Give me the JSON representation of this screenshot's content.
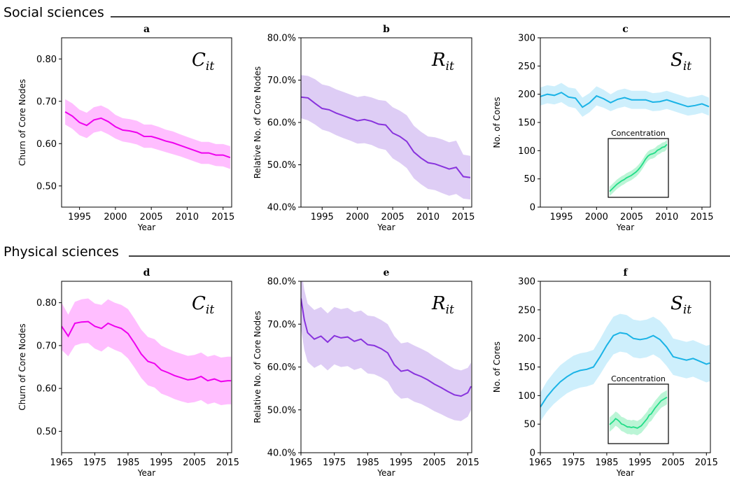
{
  "sections": [
    {
      "title": "Social sciences"
    },
    {
      "title": "Physical sciences"
    }
  ],
  "chart_data": [
    {
      "id": "a",
      "type": "line",
      "panel_label": "a",
      "annotation": {
        "main": "C",
        "sub": "it"
      },
      "xlabel": "Year",
      "ylabel": "Churn of Core Nodes",
      "xlim": [
        1992.5,
        2016.2
      ],
      "ylim": [
        0.45,
        0.85
      ],
      "xticks": [
        1995,
        2000,
        2005,
        2010,
        2015
      ],
      "yticks": [
        0.5,
        0.6,
        0.7,
        0.8
      ],
      "ytick_labels": [
        "0.50",
        "0.60",
        "0.70",
        "0.80"
      ],
      "series": [
        {
          "color": "#ee00ee",
          "band_color": "#ffb3ff",
          "x": [
            1993,
            1994,
            1995,
            1996,
            1997,
            1998,
            1999,
            2000,
            2001,
            2002,
            2003,
            2004,
            2005,
            2006,
            2007,
            2008,
            2009,
            2010,
            2011,
            2012,
            2013,
            2014,
            2015,
            2016
          ],
          "y": [
            0.675,
            0.665,
            0.65,
            0.643,
            0.656,
            0.66,
            0.652,
            0.64,
            0.632,
            0.63,
            0.626,
            0.617,
            0.617,
            0.612,
            0.606,
            0.602,
            0.596,
            0.59,
            0.584,
            0.578,
            0.578,
            0.573,
            0.573,
            0.567
          ],
          "lower": [
            0.645,
            0.635,
            0.62,
            0.613,
            0.626,
            0.63,
            0.622,
            0.612,
            0.605,
            0.602,
            0.598,
            0.59,
            0.59,
            0.585,
            0.58,
            0.575,
            0.57,
            0.564,
            0.558,
            0.552,
            0.552,
            0.547,
            0.546,
            0.54
          ],
          "upper": [
            0.705,
            0.695,
            0.68,
            0.673,
            0.686,
            0.69,
            0.682,
            0.668,
            0.66,
            0.658,
            0.654,
            0.645,
            0.645,
            0.64,
            0.633,
            0.629,
            0.622,
            0.616,
            0.61,
            0.604,
            0.604,
            0.599,
            0.599,
            0.594
          ]
        }
      ]
    },
    {
      "id": "b",
      "type": "line",
      "panel_label": "b",
      "annotation": {
        "main": "R",
        "sub": "it"
      },
      "xlabel": "Year",
      "ylabel": "Relative No. of Core Nodes",
      "xlim": [
        1992,
        2016.2
      ],
      "ylim": [
        0.4,
        0.8
      ],
      "xticks": [
        1995,
        2000,
        2005,
        2010,
        2015
      ],
      "yticks": [
        0.4,
        0.5,
        0.6,
        0.7,
        0.8
      ],
      "ytick_labels": [
        "40.0%",
        "50.0%",
        "60.0%",
        "70.0%",
        "80.0%"
      ],
      "series": [
        {
          "color": "#8833dd",
          "band_color": "#d8c4f3",
          "x": [
            1992,
            1993,
            1994,
            1995,
            1996,
            1997,
            1998,
            1999,
            2000,
            2001,
            2002,
            2003,
            2004,
            2005,
            2006,
            2007,
            2008,
            2009,
            2010,
            2011,
            2012,
            2013,
            2014,
            2015,
            2016
          ],
          "y": [
            0.66,
            0.658,
            0.645,
            0.633,
            0.63,
            0.622,
            0.616,
            0.61,
            0.604,
            0.607,
            0.603,
            0.596,
            0.594,
            0.575,
            0.567,
            0.555,
            0.53,
            0.516,
            0.505,
            0.502,
            0.496,
            0.49,
            0.494,
            0.472,
            0.47
          ],
          "lower": [
            0.61,
            0.605,
            0.595,
            0.583,
            0.578,
            0.57,
            0.563,
            0.557,
            0.55,
            0.551,
            0.547,
            0.539,
            0.535,
            0.515,
            0.505,
            0.492,
            0.468,
            0.454,
            0.443,
            0.44,
            0.433,
            0.427,
            0.431,
            0.42,
            0.418
          ],
          "upper": [
            0.712,
            0.71,
            0.702,
            0.69,
            0.686,
            0.678,
            0.672,
            0.666,
            0.66,
            0.663,
            0.659,
            0.653,
            0.651,
            0.636,
            0.628,
            0.617,
            0.592,
            0.578,
            0.567,
            0.565,
            0.56,
            0.553,
            0.557,
            0.524,
            0.521
          ]
        }
      ]
    },
    {
      "id": "c",
      "type": "line",
      "panel_label": "c",
      "annotation": {
        "main": "S",
        "sub": "it"
      },
      "xlabel": "Year",
      "ylabel": "No. of Cores",
      "xlim": [
        1992,
        2016.2
      ],
      "ylim": [
        0,
        300
      ],
      "xticks": [
        1995,
        2000,
        2005,
        2010,
        2015
      ],
      "yticks": [
        0,
        50,
        100,
        150,
        200,
        250,
        300
      ],
      "ytick_labels": [
        "0",
        "50",
        "100",
        "150",
        "200",
        "250",
        "300"
      ],
      "series": [
        {
          "color": "#1ab3e6",
          "band_color": "#c6ecfb",
          "x": [
            1992,
            1993,
            1994,
            1995,
            1996,
            1997,
            1998,
            1999,
            2000,
            2001,
            2002,
            2003,
            2004,
            2005,
            2006,
            2007,
            2008,
            2009,
            2010,
            2011,
            2012,
            2013,
            2014,
            2015,
            2016
          ],
          "y": [
            196,
            200,
            198,
            203,
            195,
            193,
            177,
            185,
            197,
            192,
            185,
            191,
            194,
            190,
            190,
            190,
            186,
            187,
            190,
            186,
            182,
            178,
            180,
            183,
            178
          ],
          "lower": [
            180,
            184,
            182,
            186,
            178,
            175,
            160,
            168,
            180,
            176,
            170,
            175,
            178,
            174,
            174,
            174,
            170,
            171,
            174,
            170,
            166,
            162,
            164,
            167,
            162
          ],
          "upper": [
            212,
            216,
            214,
            220,
            212,
            210,
            194,
            202,
            214,
            208,
            200,
            207,
            210,
            206,
            206,
            206,
            202,
            203,
            206,
            202,
            198,
            194,
            196,
            199,
            194
          ]
        }
      ],
      "inset": {
        "title": "Concentration",
        "color": "#22dd88",
        "band_color": "#aaf3cc",
        "y": [
          0.1,
          0.14,
          0.18,
          0.22,
          0.25,
          0.28,
          0.3,
          0.33,
          0.35,
          0.37,
          0.4,
          0.43,
          0.47,
          0.52,
          0.58,
          0.65,
          0.7,
          0.73,
          0.74,
          0.76,
          0.8,
          0.82,
          0.85,
          0.86,
          0.9
        ],
        "spread": 0.08
      }
    },
    {
      "id": "d",
      "type": "line",
      "panel_label": "d",
      "annotation": {
        "main": "C",
        "sub": "it"
      },
      "xlabel": "Year",
      "ylabel": "Churn of Core Nodes",
      "xlim": [
        1965,
        2016.2
      ],
      "ylim": [
        0.45,
        0.85
      ],
      "xticks": [
        1965,
        1975,
        1985,
        1995,
        2005,
        2015
      ],
      "yticks": [
        0.5,
        0.6,
        0.7,
        0.8
      ],
      "ytick_labels": [
        "0.50",
        "0.60",
        "0.70",
        "0.80"
      ],
      "series": [
        {
          "color": "#ee00ee",
          "band_color": "#ffb3ff",
          "x": [
            1965,
            1967,
            1969,
            1971,
            1973,
            1975,
            1977,
            1979,
            1981,
            1983,
            1985,
            1987,
            1989,
            1991,
            1993,
            1995,
            1997,
            1999,
            2001,
            2003,
            2005,
            2007,
            2009,
            2011,
            2013,
            2015,
            2016
          ],
          "y": [
            0.745,
            0.722,
            0.752,
            0.755,
            0.756,
            0.745,
            0.74,
            0.752,
            0.745,
            0.74,
            0.728,
            0.705,
            0.68,
            0.663,
            0.658,
            0.643,
            0.637,
            0.63,
            0.625,
            0.62,
            0.622,
            0.628,
            0.618,
            0.622,
            0.616,
            0.618,
            0.618
          ],
          "lower": [
            0.69,
            0.675,
            0.7,
            0.705,
            0.706,
            0.693,
            0.686,
            0.698,
            0.69,
            0.684,
            0.67,
            0.648,
            0.624,
            0.607,
            0.602,
            0.588,
            0.582,
            0.575,
            0.57,
            0.566,
            0.568,
            0.573,
            0.563,
            0.567,
            0.561,
            0.563,
            0.563
          ],
          "upper": [
            0.8,
            0.772,
            0.802,
            0.808,
            0.81,
            0.798,
            0.795,
            0.808,
            0.8,
            0.795,
            0.785,
            0.762,
            0.737,
            0.72,
            0.715,
            0.7,
            0.693,
            0.686,
            0.681,
            0.676,
            0.678,
            0.684,
            0.674,
            0.678,
            0.672,
            0.674,
            0.674
          ]
        }
      ]
    },
    {
      "id": "e",
      "type": "line",
      "panel_label": "e",
      "annotation": {
        "main": "R",
        "sub": "it"
      },
      "xlabel": "Year",
      "ylabel": "Relative No. of Core Nodes",
      "xlim": [
        1965,
        2016.2
      ],
      "ylim": [
        0.4,
        0.8
      ],
      "xticks": [
        1965,
        1975,
        1985,
        1995,
        2005,
        2015
      ],
      "yticks": [
        0.4,
        0.5,
        0.6,
        0.7,
        0.8
      ],
      "ytick_labels": [
        "40.0%",
        "50.0%",
        "60.0%",
        "70.0%",
        "80.0%"
      ],
      "series": [
        {
          "color": "#8833dd",
          "band_color": "#d8c4f3",
          "x": [
            1965,
            1966,
            1967,
            1969,
            1971,
            1973,
            1975,
            1977,
            1979,
            1981,
            1983,
            1985,
            1987,
            1989,
            1991,
            1993,
            1995,
            1997,
            1999,
            2001,
            2003,
            2005,
            2007,
            2009,
            2011,
            2013,
            2015,
            2016
          ],
          "y": [
            0.76,
            0.71,
            0.68,
            0.665,
            0.672,
            0.658,
            0.673,
            0.668,
            0.67,
            0.66,
            0.665,
            0.652,
            0.65,
            0.643,
            0.633,
            0.605,
            0.59,
            0.593,
            0.584,
            0.578,
            0.57,
            0.56,
            0.552,
            0.543,
            0.535,
            0.532,
            0.54,
            0.555
          ],
          "lower": [
            0.69,
            0.64,
            0.612,
            0.598,
            0.606,
            0.592,
            0.606,
            0.6,
            0.602,
            0.593,
            0.598,
            0.585,
            0.583,
            0.576,
            0.566,
            0.54,
            0.526,
            0.528,
            0.519,
            0.514,
            0.506,
            0.497,
            0.49,
            0.482,
            0.476,
            0.474,
            0.484,
            0.5
          ],
          "upper": [
            0.83,
            0.78,
            0.748,
            0.733,
            0.74,
            0.725,
            0.74,
            0.735,
            0.738,
            0.728,
            0.732,
            0.72,
            0.718,
            0.71,
            0.7,
            0.672,
            0.655,
            0.658,
            0.65,
            0.643,
            0.635,
            0.624,
            0.615,
            0.605,
            0.596,
            0.592,
            0.598,
            0.61
          ]
        }
      ]
    },
    {
      "id": "f",
      "type": "line",
      "panel_label": "f",
      "annotation": {
        "main": "S",
        "sub": "it"
      },
      "xlabel": "Year",
      "ylabel": "No. of Cores",
      "xlim": [
        1965,
        2016.2
      ],
      "ylim": [
        0,
        300
      ],
      "xticks": [
        1965,
        1975,
        1985,
        1995,
        2005,
        2015
      ],
      "yticks": [
        0,
        50,
        100,
        150,
        200,
        250,
        300
      ],
      "ytick_labels": [
        "0",
        "50",
        "100",
        "150",
        "200",
        "250",
        "300"
      ],
      "series": [
        {
          "color": "#1ab3e6",
          "band_color": "#c6ecfb",
          "x": [
            1965,
            1967,
            1969,
            1971,
            1973,
            1975,
            1977,
            1979,
            1981,
            1983,
            1985,
            1987,
            1989,
            1991,
            1993,
            1995,
            1997,
            1999,
            2001,
            2003,
            2005,
            2007,
            2009,
            2011,
            2013,
            2015,
            2016
          ],
          "y": [
            80,
            98,
            112,
            124,
            133,
            140,
            144,
            146,
            150,
            168,
            188,
            205,
            210,
            208,
            200,
            198,
            200,
            205,
            198,
            185,
            168,
            165,
            162,
            165,
            160,
            155,
            157
          ],
          "lower": [
            55,
            72,
            85,
            95,
            104,
            110,
            114,
            116,
            120,
            137,
            156,
            172,
            177,
            175,
            167,
            165,
            167,
            172,
            165,
            152,
            136,
            133,
            130,
            133,
            128,
            123,
            125
          ],
          "upper": [
            105,
            125,
            140,
            153,
            162,
            170,
            174,
            176,
            180,
            199,
            220,
            238,
            243,
            241,
            233,
            231,
            233,
            238,
            231,
            218,
            200,
            197,
            194,
            197,
            192,
            187,
            189
          ]
        }
      ],
      "inset": {
        "title": "Concentration",
        "color": "#22dd88",
        "band_color": "#aaf3cc",
        "y": [
          0.32,
          0.35,
          0.38,
          0.42,
          0.4,
          0.37,
          0.33,
          0.32,
          0.3,
          0.28,
          0.28,
          0.27,
          0.28,
          0.27,
          0.26,
          0.28,
          0.3,
          0.34,
          0.38,
          0.42,
          0.48,
          0.5,
          0.55,
          0.6,
          0.64,
          0.68,
          0.72,
          0.74,
          0.76,
          0.78
        ],
        "spread": 0.12
      }
    }
  ]
}
